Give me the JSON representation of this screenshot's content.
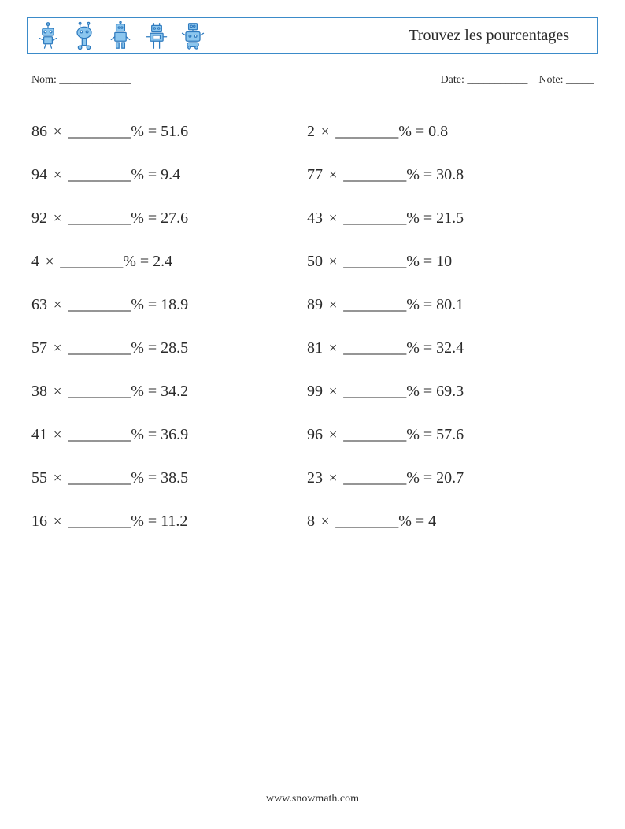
{
  "header": {
    "title": "Trouvez les pourcentages"
  },
  "info": {
    "name_label": "Nom:",
    "name_blank": "_____________",
    "date_label": "Date:",
    "date_blank": "___________",
    "note_label": "Note:",
    "note_blank": "_____"
  },
  "blank": "________",
  "problems": {
    "rows": [
      {
        "left": {
          "a": "86",
          "r": "51.6"
        },
        "right": {
          "a": "2",
          "r": "0.8"
        }
      },
      {
        "left": {
          "a": "94",
          "r": "9.4"
        },
        "right": {
          "a": "77",
          "r": "30.8"
        }
      },
      {
        "left": {
          "a": "92",
          "r": "27.6"
        },
        "right": {
          "a": "43",
          "r": "21.5"
        }
      },
      {
        "left": {
          "a": "4",
          "r": "2.4"
        },
        "right": {
          "a": "50",
          "r": "10"
        }
      },
      {
        "left": {
          "a": "63",
          "r": "18.9"
        },
        "right": {
          "a": "89",
          "r": "80.1"
        }
      },
      {
        "left": {
          "a": "57",
          "r": "28.5"
        },
        "right": {
          "a": "81",
          "r": "32.4"
        }
      },
      {
        "left": {
          "a": "38",
          "r": "34.2"
        },
        "right": {
          "a": "99",
          "r": "69.3"
        }
      },
      {
        "left": {
          "a": "41",
          "r": "36.9"
        },
        "right": {
          "a": "96",
          "r": "57.6"
        }
      },
      {
        "left": {
          "a": "55",
          "r": "38.5"
        },
        "right": {
          "a": "23",
          "r": "20.7"
        }
      },
      {
        "left": {
          "a": "16",
          "r": "11.2"
        },
        "right": {
          "a": "8",
          "r": "4"
        }
      }
    ]
  },
  "footer": {
    "text": "www.snowmath.com"
  },
  "colors": {
    "robot_stroke": "#2f7bbf",
    "robot_fill": "#8cc6ee",
    "border": "#3b8bc9",
    "text": "#2b2b2b",
    "background": "#ffffff"
  }
}
